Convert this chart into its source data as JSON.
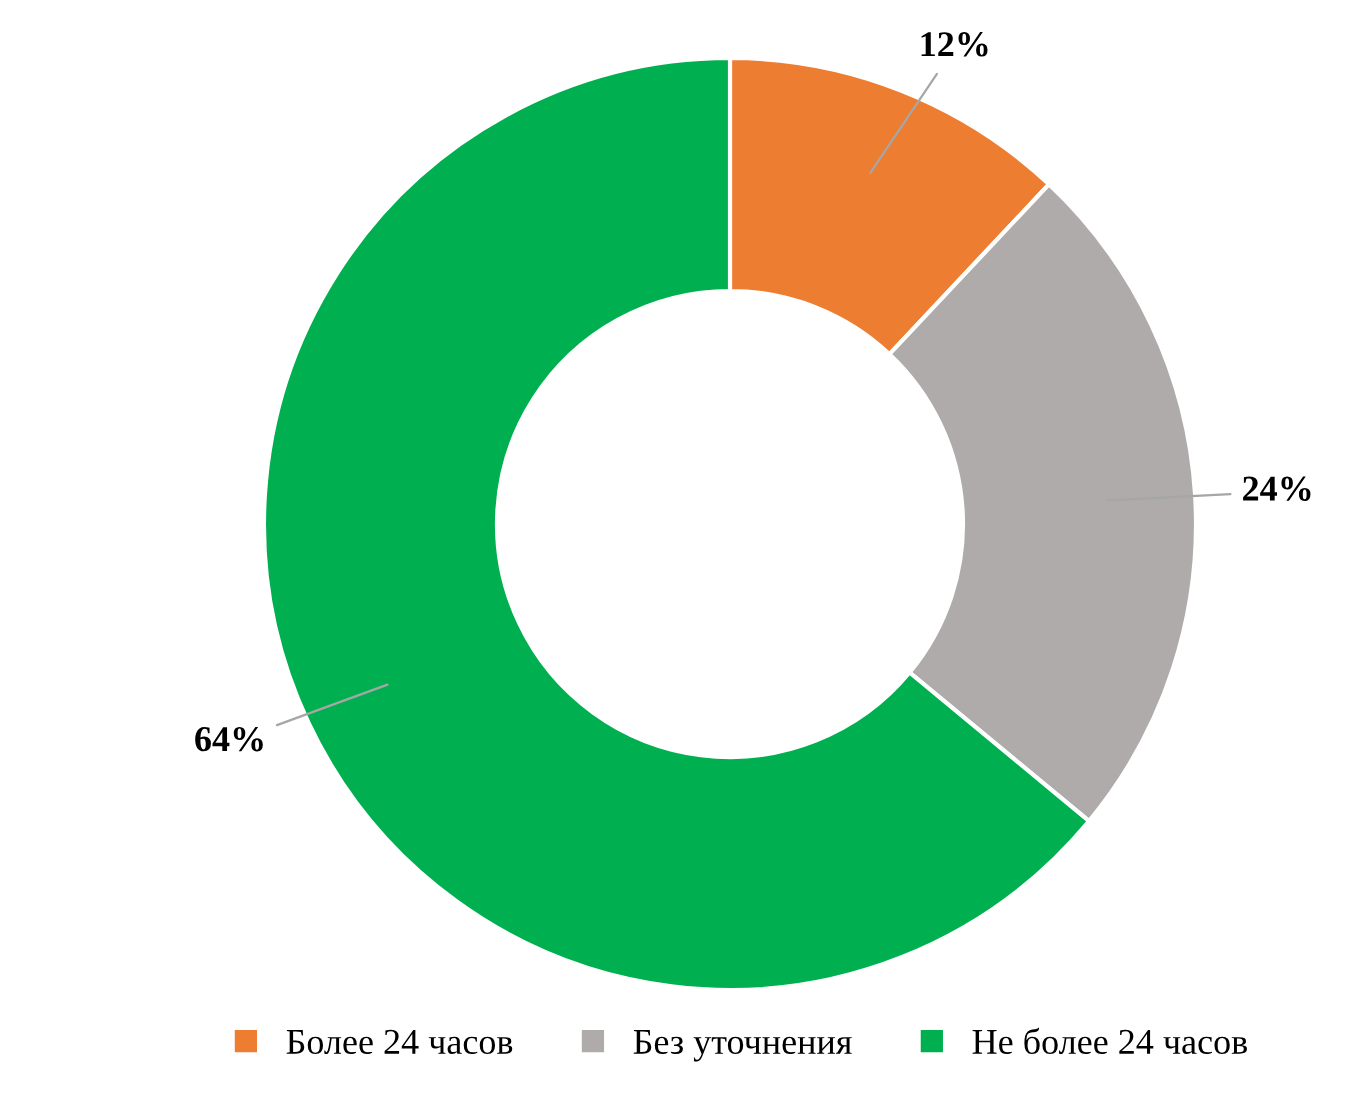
{
  "chart_data": {
    "type": "donut",
    "categories": [
      "Более 24 часов",
      "Без уточнения",
      "Не более 24 часов"
    ],
    "values": [
      12,
      24,
      64
    ],
    "colors": [
      "#ed7d31",
      "#afabab",
      "#00b050"
    ],
    "value_labels": [
      "12%",
      "24%",
      "64%"
    ],
    "legend": "bottom"
  }
}
